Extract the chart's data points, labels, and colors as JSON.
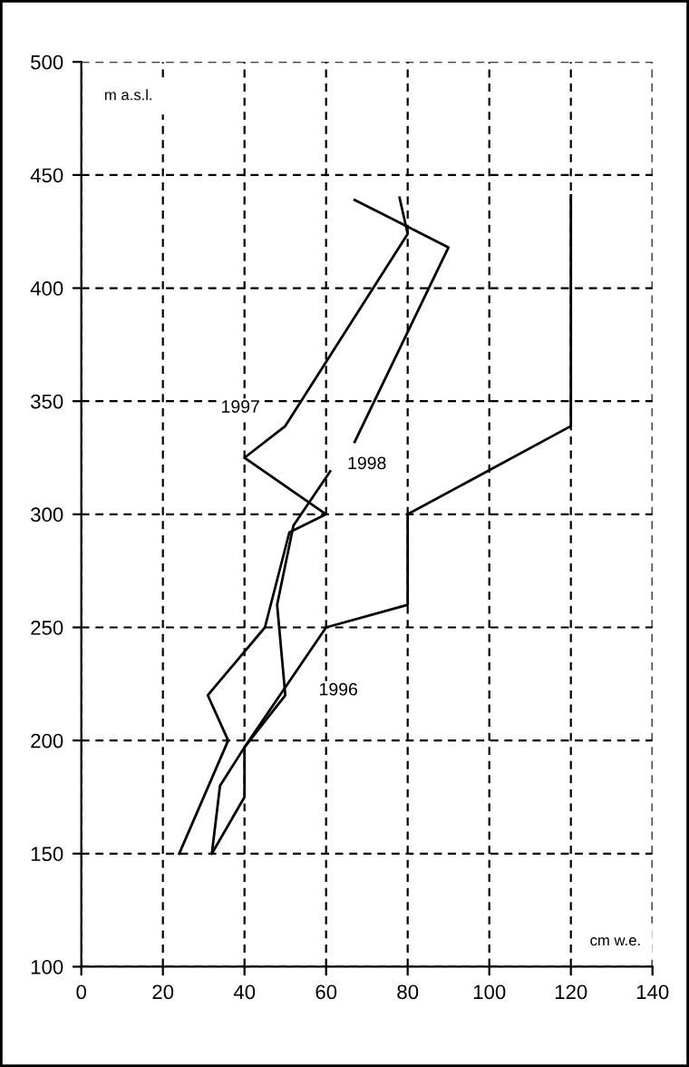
{
  "chart_data": {
    "type": "line",
    "xlabel": "cm w.e.",
    "ylabel": "m a.s.l.",
    "series": [
      {
        "name": "1996",
        "color": "#000000",
        "x": [
          120,
          120,
          80,
          80,
          60,
          40,
          34,
          32
        ],
        "values": [
          441,
          339,
          300,
          260,
          250,
          197,
          180,
          150
        ]
      },
      {
        "name": "1997",
        "color": "#000000",
        "x": [
          24,
          36,
          31,
          45,
          51,
          60,
          40,
          50,
          80,
          78
        ],
        "values": [
          150,
          200,
          220,
          250,
          292,
          300,
          325,
          339,
          424,
          440
        ]
      },
      {
        "name": "1998",
        "color": "#000000",
        "x": [
          32,
          40,
          40,
          50,
          48,
          52,
          61,
          64,
          67,
          90,
          67
        ],
        "values": [
          150,
          175,
          197,
          220,
          260,
          295,
          319,
          null,
          332,
          418,
          439
        ]
      }
    ],
    "xlim": [
      0,
      140
    ],
    "ylim": [
      100,
      500
    ],
    "xticks": [
      0,
      20,
      40,
      60,
      80,
      100,
      120,
      140
    ],
    "yticks": [
      100,
      150,
      200,
      250,
      300,
      350,
      400,
      450,
      500
    ],
    "grid": true,
    "line_style": "solid",
    "marker": "none"
  }
}
